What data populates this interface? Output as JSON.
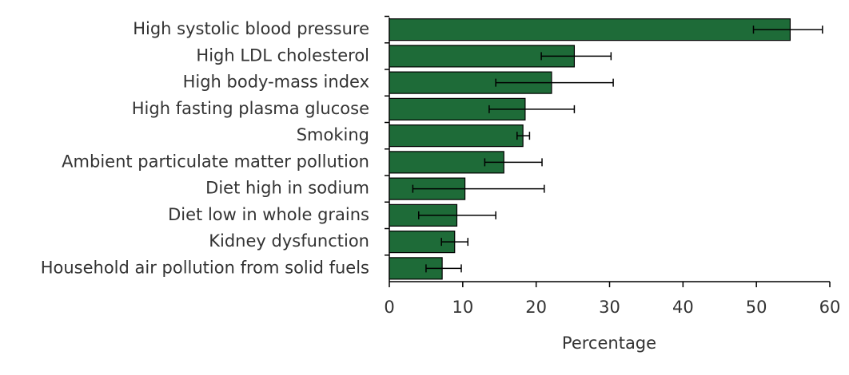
{
  "chart_data": {
    "type": "bar",
    "orientation": "horizontal",
    "categories": [
      "High systolic blood pressure",
      "High LDL cholesterol",
      "High body-mass index",
      "High fasting plasma glucose",
      "Smoking",
      "Ambient particulate matter pollution",
      "Diet high in sodium",
      "Diet low in whole grains",
      "Kidney dysfunction",
      "Household air pollution from solid fuels"
    ],
    "values": [
      54.6,
      25.2,
      22.1,
      18.5,
      18.2,
      15.6,
      10.3,
      9.2,
      8.9,
      7.2
    ],
    "lower": [
      49.6,
      20.7,
      14.5,
      13.6,
      17.4,
      13.0,
      3.2,
      4.0,
      7.1,
      5.0
    ],
    "upper": [
      59.0,
      30.2,
      30.5,
      25.2,
      19.1,
      20.8,
      21.1,
      14.5,
      10.7,
      9.8
    ],
    "color": "#1e6b38",
    "xlabel": "Percentage",
    "xlim": [
      0,
      60
    ],
    "xticks": [
      0,
      10,
      20,
      30,
      40,
      50,
      60
    ]
  }
}
